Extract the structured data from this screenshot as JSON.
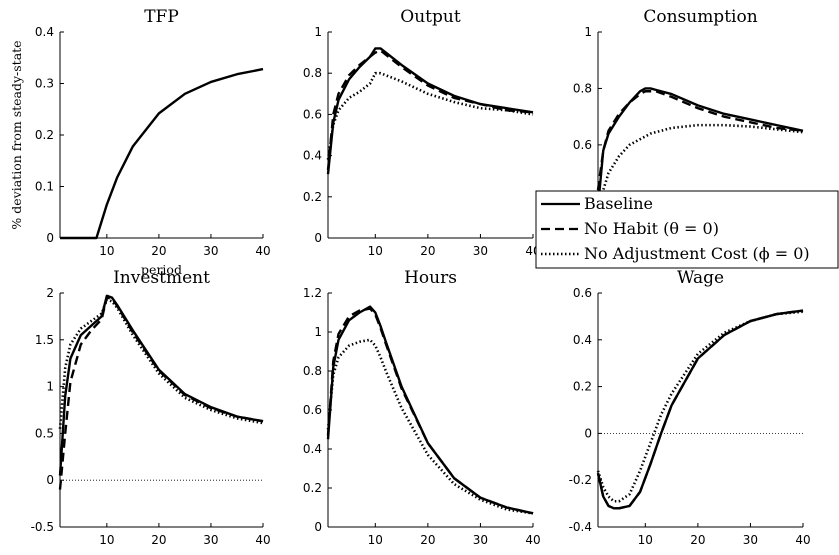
{
  "chart_data": [
    {
      "type": "line",
      "title": "TFP",
      "xlabel": "period",
      "ylabel": "% deviation from steady-state",
      "xlim": [
        1,
        40
      ],
      "ylim": [
        0,
        0.4
      ],
      "xticks": [
        10,
        20,
        30,
        40
      ],
      "yticks": [
        0,
        0.1,
        0.2,
        0.3,
        0.4
      ],
      "zero_line": true,
      "series": [
        {
          "style": "solid",
          "x": [
            1,
            8,
            10,
            12,
            15,
            20,
            25,
            30,
            35,
            40
          ],
          "y": [
            0,
            0,
            0.065,
            0.118,
            0.178,
            0.242,
            0.28,
            0.303,
            0.318,
            0.328
          ]
        }
      ]
    },
    {
      "type": "line",
      "title": "Output",
      "xlim": [
        1,
        40
      ],
      "ylim": [
        0,
        1
      ],
      "xticks": [
        10,
        20,
        30,
        40
      ],
      "yticks": [
        0,
        0.2,
        0.4,
        0.6,
        0.8,
        1
      ],
      "zero_line": true,
      "series": [
        {
          "name": "Baseline",
          "style": "solid",
          "x": [
            1,
            2,
            3,
            5,
            7,
            9,
            10,
            11,
            12,
            15,
            20,
            25,
            30,
            35,
            40
          ],
          "y": [
            0.31,
            0.56,
            0.67,
            0.77,
            0.83,
            0.88,
            0.92,
            0.92,
            0.9,
            0.84,
            0.75,
            0.69,
            0.65,
            0.63,
            0.61
          ]
        },
        {
          "name": "No Habit (θ = 0)",
          "style": "dashed",
          "x": [
            1,
            2,
            3,
            5,
            7,
            9,
            10,
            11,
            12,
            15,
            20,
            25,
            30,
            35,
            40
          ],
          "y": [
            0.33,
            0.6,
            0.7,
            0.79,
            0.84,
            0.88,
            0.9,
            0.91,
            0.89,
            0.83,
            0.74,
            0.68,
            0.65,
            0.62,
            0.61
          ]
        },
        {
          "name": "No Adjustment Cost (ϕ = 0)",
          "style": "dotted",
          "x": [
            1,
            2,
            3,
            5,
            7,
            9,
            10,
            11,
            12,
            15,
            20,
            25,
            30,
            35,
            40
          ],
          "y": [
            0.38,
            0.55,
            0.62,
            0.68,
            0.71,
            0.75,
            0.8,
            0.8,
            0.79,
            0.76,
            0.7,
            0.66,
            0.63,
            0.62,
            0.6
          ]
        }
      ]
    },
    {
      "type": "line",
      "title": "Consumption",
      "xlim": [
        1,
        40
      ],
      "ylim": [
        0.27,
        1
      ],
      "xticks": [
        10,
        20,
        30,
        40
      ],
      "yticks": [
        0.4,
        0.6,
        0.8,
        1
      ],
      "series": [
        {
          "name": "Baseline",
          "style": "solid",
          "x": [
            1,
            2,
            3,
            5,
            7,
            9,
            10,
            11,
            12,
            15,
            20,
            25,
            30,
            35,
            40
          ],
          "y": [
            0.38,
            0.58,
            0.64,
            0.7,
            0.75,
            0.79,
            0.8,
            0.8,
            0.795,
            0.78,
            0.74,
            0.71,
            0.69,
            0.67,
            0.65
          ]
        },
        {
          "name": "No Habit (θ = 0)",
          "style": "dashed",
          "x": [
            1,
            2,
            3,
            5,
            7,
            9,
            10,
            11,
            12,
            15,
            20,
            25,
            30,
            35,
            40
          ],
          "y": [
            0.44,
            0.58,
            0.65,
            0.71,
            0.75,
            0.78,
            0.79,
            0.79,
            0.79,
            0.77,
            0.73,
            0.7,
            0.68,
            0.66,
            0.65
          ]
        },
        {
          "name": "No Adjustment Cost (ϕ = 0)",
          "style": "dotted",
          "x": [
            1,
            2,
            3,
            5,
            7,
            9,
            11,
            13,
            15,
            20,
            25,
            30,
            35,
            40
          ],
          "y": [
            0.33,
            0.44,
            0.5,
            0.56,
            0.6,
            0.62,
            0.64,
            0.65,
            0.66,
            0.67,
            0.67,
            0.665,
            0.655,
            0.645
          ]
        }
      ]
    },
    {
      "type": "line",
      "title": "Investment",
      "xlim": [
        1,
        40
      ],
      "ylim": [
        -0.5,
        2
      ],
      "xticks": [
        10,
        20,
        30,
        40
      ],
      "yticks": [
        -0.5,
        0,
        0.5,
        1,
        1.5,
        2
      ],
      "zero_line": true,
      "series": [
        {
          "name": "Baseline",
          "style": "solid",
          "x": [
            1,
            2,
            3,
            5,
            7,
            9,
            10,
            11,
            12,
            15,
            20,
            25,
            30,
            35,
            40
          ],
          "y": [
            0.05,
            0.9,
            1.3,
            1.55,
            1.65,
            1.75,
            1.97,
            1.95,
            1.87,
            1.6,
            1.18,
            0.92,
            0.78,
            0.68,
            0.63
          ]
        },
        {
          "name": "No Habit (θ = 0)",
          "style": "dashed",
          "x": [
            1,
            2,
            3,
            5,
            7,
            9,
            10,
            11,
            12,
            15,
            20,
            25,
            30,
            35,
            40
          ],
          "y": [
            -0.1,
            0.5,
            1.05,
            1.45,
            1.6,
            1.72,
            1.95,
            1.94,
            1.86,
            1.58,
            1.17,
            0.91,
            0.77,
            0.68,
            0.63
          ]
        },
        {
          "name": "No Adjustment Cost (ϕ = 0)",
          "style": "dotted",
          "x": [
            1,
            2,
            3,
            5,
            7,
            9,
            10,
            11,
            12,
            15,
            20,
            25,
            30,
            35,
            40
          ],
          "y": [
            0.55,
            1.2,
            1.45,
            1.62,
            1.7,
            1.78,
            1.93,
            1.91,
            1.84,
            1.55,
            1.14,
            0.88,
            0.75,
            0.66,
            0.61
          ]
        }
      ]
    },
    {
      "type": "line",
      "title": "Hours",
      "xlim": [
        1,
        40
      ],
      "ylim": [
        0,
        1.2
      ],
      "xticks": [
        10,
        20,
        30,
        40
      ],
      "yticks": [
        0,
        0.2,
        0.4,
        0.6,
        0.8,
        1,
        1.2
      ],
      "zero_line": true,
      "series": [
        {
          "name": "Baseline",
          "style": "solid",
          "x": [
            1,
            2,
            3,
            5,
            7,
            9,
            10,
            11,
            12,
            15,
            20,
            25,
            30,
            35,
            40
          ],
          "y": [
            0.45,
            0.82,
            0.96,
            1.06,
            1.1,
            1.13,
            1.1,
            1.03,
            0.95,
            0.72,
            0.43,
            0.25,
            0.15,
            0.1,
            0.07
          ]
        },
        {
          "name": "No Habit (θ = 0)",
          "style": "dashed",
          "x": [
            1,
            2,
            3,
            5,
            7,
            9,
            10,
            11,
            12,
            15,
            20,
            25,
            30,
            35,
            40
          ],
          "y": [
            0.47,
            0.85,
            0.99,
            1.08,
            1.11,
            1.12,
            1.09,
            1.02,
            0.94,
            0.71,
            0.43,
            0.25,
            0.15,
            0.1,
            0.07
          ]
        },
        {
          "name": "No Adjustment Cost (ϕ = 0)",
          "style": "dotted",
          "x": [
            1,
            2,
            3,
            5,
            7,
            9,
            10,
            11,
            12,
            15,
            20,
            25,
            30,
            35,
            40
          ],
          "y": [
            0.5,
            0.78,
            0.87,
            0.93,
            0.95,
            0.96,
            0.93,
            0.87,
            0.8,
            0.61,
            0.37,
            0.22,
            0.14,
            0.09,
            0.07
          ]
        }
      ]
    },
    {
      "type": "line",
      "title": "Wage",
      "xlim": [
        1,
        40
      ],
      "ylim": [
        -0.4,
        0.6
      ],
      "xticks": [
        10,
        20,
        30,
        40
      ],
      "yticks": [
        -0.4,
        -0.2,
        0,
        0.2,
        0.4,
        0.6
      ],
      "zero_line": true,
      "series": [
        {
          "name": "Baseline",
          "style": "solid",
          "x": [
            1,
            2,
            3,
            4,
            5,
            7,
            9,
            11,
            13,
            15,
            20,
            25,
            30,
            35,
            40
          ],
          "y": [
            -0.17,
            -0.27,
            -0.31,
            -0.32,
            -0.32,
            -0.31,
            -0.25,
            -0.13,
            0.0,
            0.12,
            0.32,
            0.42,
            0.48,
            0.51,
            0.525
          ]
        },
        {
          "name": "No Habit (θ = 0)",
          "style": "dashed",
          "x": [
            1,
            2,
            3,
            4,
            5,
            7,
            9,
            11,
            13,
            15,
            20,
            25,
            30,
            35,
            40
          ],
          "y": [
            -0.17,
            -0.27,
            -0.31,
            -0.32,
            -0.32,
            -0.31,
            -0.25,
            -0.13,
            0.0,
            0.12,
            0.32,
            0.42,
            0.48,
            0.51,
            0.525
          ]
        },
        {
          "name": "No Adjustment Cost (ϕ = 0)",
          "style": "dotted",
          "x": [
            1,
            2,
            3,
            4,
            5,
            7,
            9,
            11,
            13,
            15,
            20,
            25,
            30,
            35,
            40
          ],
          "y": [
            -0.16,
            -0.23,
            -0.27,
            -0.29,
            -0.29,
            -0.26,
            -0.16,
            -0.04,
            0.08,
            0.17,
            0.34,
            0.43,
            0.48,
            0.51,
            0.52
          ]
        }
      ]
    }
  ],
  "legend": {
    "placement": "overlay-right",
    "entries": [
      {
        "label": "Baseline",
        "style": "solid"
      },
      {
        "label": "No Habit (θ = 0)",
        "style": "dashed"
      },
      {
        "label": "No Adjustment Cost (ϕ = 0)",
        "style": "dotted"
      }
    ]
  }
}
